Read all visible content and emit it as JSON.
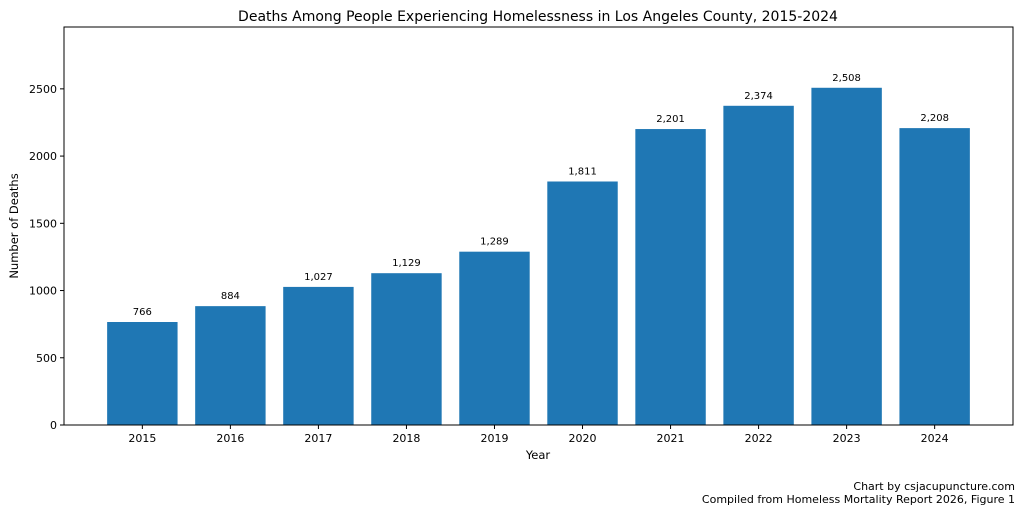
{
  "chart_data": {
    "type": "bar",
    "title": "Deaths Among People Experiencing Homelessness in Los Angeles County, 2015-2024",
    "xlabel": "Year",
    "ylabel": "Number of Deaths",
    "categories": [
      "2015",
      "2016",
      "2017",
      "2018",
      "2019",
      "2020",
      "2021",
      "2022",
      "2023",
      "2024"
    ],
    "values": [
      766,
      884,
      1027,
      1129,
      1289,
      1811,
      2201,
      2374,
      2508,
      2208
    ],
    "data_labels": [
      "766",
      "884",
      "1,027",
      "1,129",
      "1,289",
      "1,811",
      "2,201",
      "2,374",
      "2,508",
      "2,208"
    ],
    "yticks": [
      0,
      500,
      1000,
      1500,
      2000,
      2500
    ],
    "ylim": [
      0,
      2960
    ],
    "grid": false,
    "bar_color": "#1f77b4"
  },
  "footer": {
    "credit": "Chart by csjacupuncture.com",
    "source": "Compiled from Homeless Mortality Report 2026, Figure 1"
  }
}
